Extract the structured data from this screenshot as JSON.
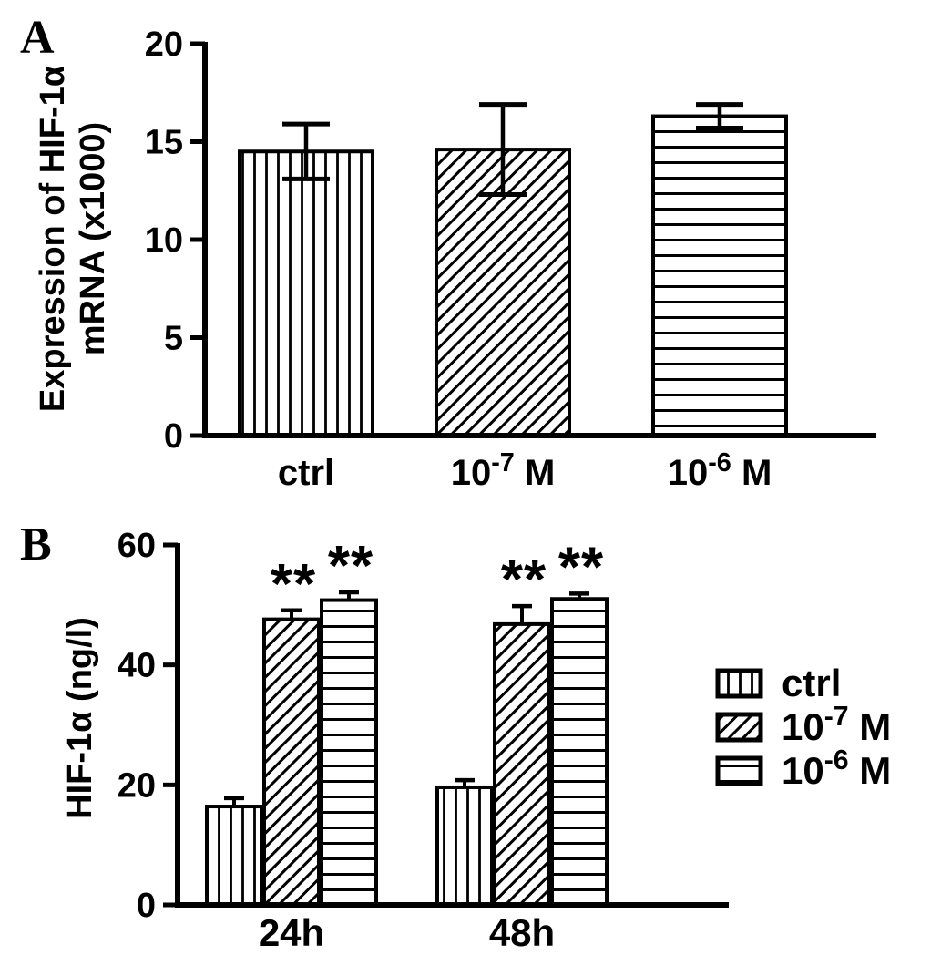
{
  "panels": [
    {
      "letter": "A"
    },
    {
      "letter": "B"
    }
  ],
  "colors": {
    "foreground": "#000000",
    "background": "#ffffff"
  },
  "chart_data": [
    {
      "type": "bar",
      "panel": "A",
      "title": "",
      "xlabel": "",
      "ylabel": "Expression of HIF-1α mRNA (x1000)",
      "ylabel_lines": [
        "Expression of HIF-1α",
        "mRNA (x1000)"
      ],
      "categories": [
        {
          "pre": "ctrl",
          "sup": "",
          "post": ""
        },
        {
          "pre": "10",
          "sup": "-7",
          "post": " M"
        },
        {
          "pre": "10",
          "sup": "-6",
          "post": " M"
        }
      ],
      "values": [
        14.5,
        14.6,
        16.3
      ],
      "errors": [
        1.4,
        2.3,
        0.6
      ],
      "error_style": "both",
      "hatches": [
        "vertical",
        "diagonal",
        "horizontal"
      ],
      "ylim": [
        0,
        20
      ],
      "yticks": [
        0,
        5,
        10,
        15,
        20
      ],
      "grid": false,
      "legend_position": "none"
    },
    {
      "type": "bar",
      "panel": "B",
      "title": "",
      "xlabel": "",
      "ylabel": "HIF-1α (ng/l)",
      "ylabel_lines": [
        "HIF-1α (ng/l)"
      ],
      "categories": [
        {
          "pre": "24h",
          "sup": "",
          "post": ""
        },
        {
          "pre": "48h",
          "sup": "",
          "post": ""
        }
      ],
      "series": [
        {
          "name": {
            "pre": "ctrl",
            "sup": "",
            "post": ""
          },
          "hatch": "vertical",
          "values": [
            16.4,
            19.6
          ],
          "errors": [
            1.4,
            1.2
          ],
          "sig": [
            "",
            ""
          ]
        },
        {
          "name": {
            "pre": "10",
            "sup": "-7",
            "post": " M"
          },
          "hatch": "diagonal",
          "values": [
            47.6,
            46.8
          ],
          "errors": [
            1.5,
            3.0
          ],
          "sig": [
            "**",
            "**"
          ]
        },
        {
          "name": {
            "pre": "10",
            "sup": "-6",
            "post": " M"
          },
          "hatch": "horizontal",
          "values": [
            50.8,
            51.0
          ],
          "errors": [
            1.3,
            0.9
          ],
          "sig": [
            "**",
            "**"
          ]
        }
      ],
      "significance_marker": "**",
      "error_style": "upper",
      "ylim": [
        0,
        60
      ],
      "yticks": [
        0,
        20,
        40,
        60
      ],
      "grid": false,
      "legend_position": "right",
      "legend": [
        "ctrl",
        "10⁻⁷ M",
        "10⁻⁶ M"
      ]
    }
  ]
}
